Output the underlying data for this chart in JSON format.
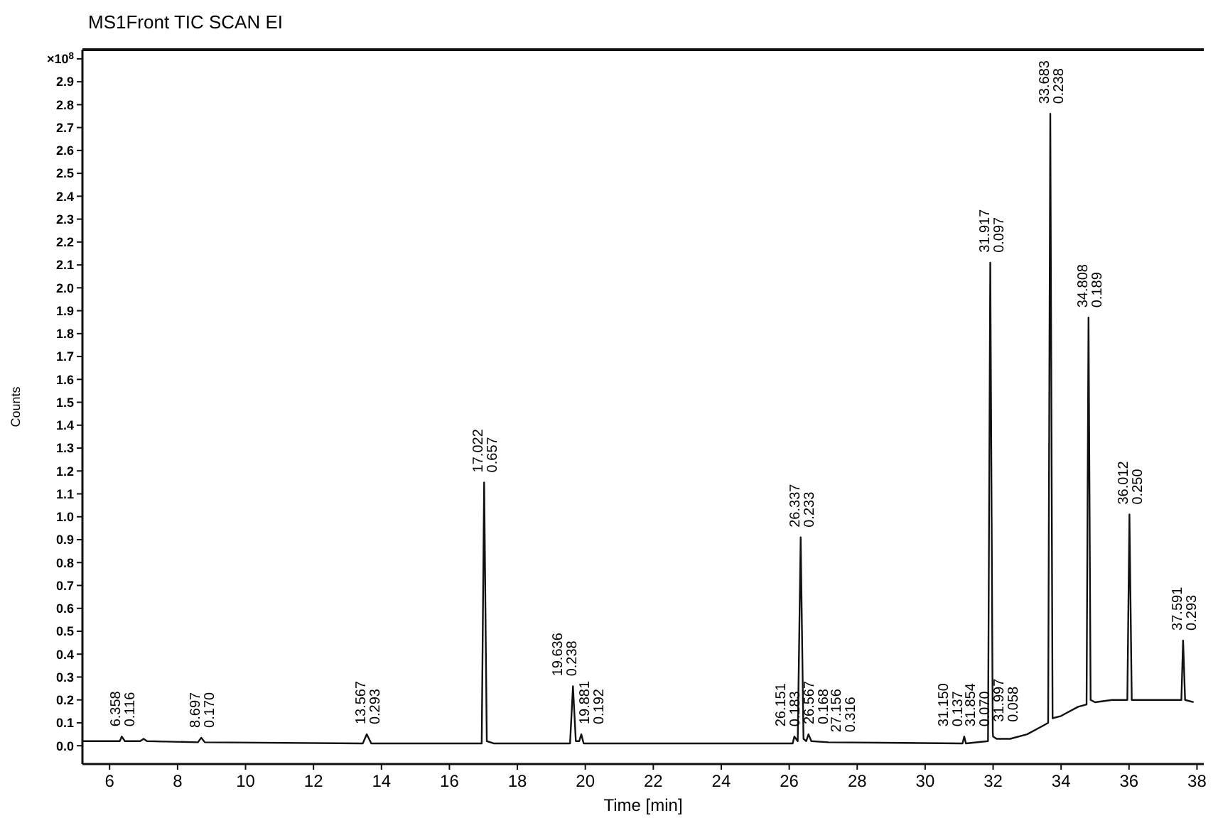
{
  "chart_data": {
    "type": "line",
    "title": "MS1Front TIC SCAN EI",
    "xlabel": "Time [min]",
    "ylabel": "Counts",
    "xlim": [
      5.2,
      38.2
    ],
    "xticks": [
      6,
      8,
      10,
      12,
      14,
      16,
      18,
      20,
      22,
      24,
      26,
      28,
      30,
      32,
      34,
      36,
      38
    ],
    "ylim": [
      -0.08,
      3.04
    ],
    "yticks": [
      {
        "value": 0,
        "label": "0.0"
      },
      0.1,
      0.2,
      0.3,
      0.4,
      0.5,
      0.6,
      0.7,
      0.8,
      0.9,
      {
        "value": 1,
        "label": "1.0"
      },
      1.1,
      1.2,
      1.3,
      1.4,
      1.5,
      1.6,
      1.7,
      1.8,
      1.9,
      {
        "value": 2,
        "label": "2.0"
      },
      2.1,
      2.2,
      2.3,
      2.4,
      2.5,
      2.6,
      2.7,
      2.8,
      2.9,
      {
        "value": 3,
        "label": "×10$^{8}$"
      }
    ],
    "grid": false,
    "marker": "none",
    "line_style": "solid",
    "series": [
      {
        "color": "#111111",
        "x": [
          5.2,
          6.0,
          6.3,
          6.358,
          6.45,
          6.9,
          7.0,
          7.1,
          8.6,
          8.697,
          8.8,
          13.45,
          13.567,
          13.7,
          16.95,
          17.022,
          17.1,
          17.3,
          19.55,
          19.636,
          19.72,
          19.82,
          19.881,
          19.95,
          20.5,
          25.0,
          26.1,
          26.151,
          26.25,
          26.337,
          26.42,
          26.5,
          26.567,
          26.65,
          27.156,
          31.1,
          31.15,
          31.2,
          31.85,
          31.917,
          31.99,
          32.0,
          32.1,
          32.5,
          33.0,
          33.5,
          33.62,
          33.683,
          33.75,
          34.0,
          34.5,
          34.75,
          34.808,
          34.87,
          35.0,
          35.5,
          35.95,
          36.012,
          36.08,
          36.5,
          37.0,
          37.54,
          37.591,
          37.65,
          37.9
        ],
        "values": [
          0.02,
          0.02,
          0.02,
          0.04,
          0.02,
          0.02,
          0.03,
          0.02,
          0.015,
          0.035,
          0.015,
          0.01,
          0.05,
          0.01,
          0.01,
          1.15,
          0.02,
          0.01,
          0.01,
          0.26,
          0.02,
          0.02,
          0.05,
          0.01,
          0.01,
          0.01,
          0.01,
          0.04,
          0.02,
          0.91,
          0.03,
          0.02,
          0.05,
          0.02,
          0.015,
          0.01,
          0.04,
          0.01,
          0.02,
          2.11,
          0.06,
          0.04,
          0.03,
          0.03,
          0.05,
          0.09,
          0.1,
          2.76,
          0.12,
          0.13,
          0.17,
          0.18,
          1.87,
          0.2,
          0.19,
          0.2,
          0.2,
          1.01,
          0.2,
          0.2,
          0.2,
          0.2,
          0.46,
          0.2,
          0.19
        ]
      }
    ],
    "annotations": [
      {
        "text": "6.358\n0.116",
        "x": 6.358,
        "y": 0.04
      },
      {
        "text": "8.697\n0.170",
        "x": 8.697,
        "y": 0.035
      },
      {
        "text": "13.567\n0.293",
        "x": 13.567,
        "y": 0.05
      },
      {
        "text": "17.022\n0.657",
        "x": 17.022,
        "y": 1.15
      },
      {
        "text": "19.636\n0.238",
        "x": 19.636,
        "y": 0.26
      },
      {
        "text": "19.881\n0.192",
        "x": 19.881,
        "y": 0.05
      },
      {
        "text": "26.151\n0.183",
        "x": 26.151,
        "y": 0.04
      },
      {
        "text": "26.337\n0.233",
        "x": 26.337,
        "y": 0.91
      },
      {
        "text": "26.567\n0.168",
        "x": 26.567,
        "y": 0.05
      },
      {
        "text": "27.156\n0.316",
        "x": 27.156,
        "y": 0.015
      },
      {
        "text": "31.150\n0.137",
        "x": 31.15,
        "y": 0.04
      },
      {
        "text": "31.854\n0.070",
        "x": 31.854,
        "y": 0.04
      },
      {
        "text": "31.917\n0.097",
        "x": 31.917,
        "y": 2.11
      },
      {
        "text": "31.997\n0.058",
        "x": 31.997,
        "y": 0.06
      },
      {
        "text": "33.683\n0.238",
        "x": 33.683,
        "y": 2.76
      },
      {
        "text": "34.808\n0.189",
        "x": 34.808,
        "y": 1.87
      },
      {
        "text": "36.012\n0.250",
        "x": 36.012,
        "y": 1.01
      },
      {
        "text": "37.591\n0.293",
        "x": 37.591,
        "y": 0.46
      }
    ]
  }
}
